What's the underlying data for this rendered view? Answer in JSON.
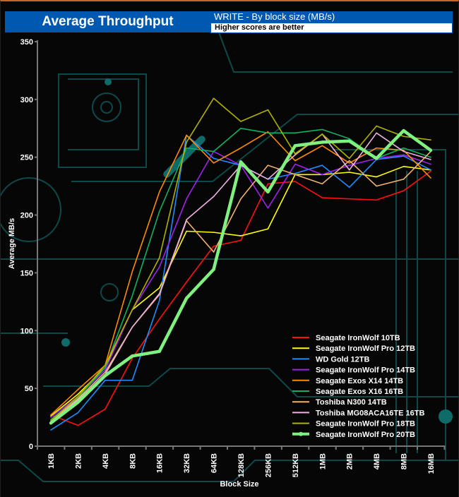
{
  "header": {
    "title": "Average Throughput",
    "subtitle": "WRITE - By block size (MB/s)",
    "note": "Higher scores are better"
  },
  "colors": {
    "header_blue": "#0058b0",
    "background": "#060606",
    "circuit": "#0f5a5a"
  },
  "chart_data": {
    "type": "line",
    "title": "Average Throughput",
    "xlabel": "Block Size",
    "ylabel": "Average MB/s",
    "ylim": [
      0,
      350
    ],
    "yticks": [
      0,
      50,
      100,
      150,
      200,
      250,
      300,
      350
    ],
    "grid": false,
    "legend_position": "bottom-right",
    "categories": [
      "1KB",
      "2KB",
      "4KB",
      "8KB",
      "16KB",
      "32KB",
      "64KB",
      "128KB",
      "256KB",
      "512KB",
      "1MB",
      "2MB",
      "4MB",
      "8MB",
      "16MB"
    ],
    "series": [
      {
        "name": "Seagate IronWolf 10TB",
        "color": "#ff1010",
        "values": [
          27,
          18,
          32,
          76,
          110,
          142,
          173,
          178,
          227,
          229,
          215,
          214,
          213,
          221,
          238
        ]
      },
      {
        "name": "Seagate IronWolf Pro 12TB",
        "color": "#ffff00",
        "values": [
          26,
          45,
          68,
          118,
          137,
          186,
          185,
          182,
          188,
          235,
          235,
          237,
          233,
          242,
          239
        ]
      },
      {
        "name": "WD Gold 12TB",
        "color": "#1e8cff",
        "values": [
          14,
          29,
          57,
          57,
          126,
          269,
          249,
          243,
          231,
          236,
          243,
          224,
          248,
          251,
          239
        ]
      },
      {
        "name": "Seagate IronWolf Pro 14TB",
        "color": "#a020f0",
        "values": [
          25,
          43,
          66,
          118,
          155,
          214,
          255,
          243,
          206,
          244,
          235,
          243,
          249,
          252,
          244
        ]
      },
      {
        "name": "Seagate Exos X14 14TB",
        "color": "#ff8c00",
        "values": [
          27,
          49,
          70,
          151,
          220,
          269,
          245,
          258,
          272,
          247,
          260,
          245,
          258,
          256,
          232
        ]
      },
      {
        "name": "Seagate Exos X16 16TB",
        "color": "#10b060",
        "values": [
          23,
          42,
          68,
          130,
          203,
          258,
          255,
          275,
          271,
          271,
          274,
          266,
          249,
          258,
          250
        ]
      },
      {
        "name": "Toshiba N300 14TB",
        "color": "#f0b070",
        "values": [
          22,
          41,
          64,
          103,
          131,
          195,
          168,
          214,
          243,
          235,
          227,
          247,
          225,
          231,
          255
        ]
      },
      {
        "name": "Toshiba MG08ACA16TE 16TB",
        "color": "#f0b0e0",
        "values": [
          21,
          40,
          62,
          103,
          132,
          196,
          216,
          243,
          231,
          252,
          270,
          239,
          271,
          255,
          248
        ]
      },
      {
        "name": "Seagate IronWolf Pro 18TB",
        "color": "#b0b000",
        "values": [
          22,
          43,
          70,
          118,
          163,
          263,
          301,
          281,
          291,
          253,
          270,
          249,
          277,
          268,
          265
        ]
      },
      {
        "name": "Seagate IronWolf Pro 20TB",
        "color": "#80f080",
        "values": [
          20,
          38,
          61,
          78,
          82,
          128,
          153,
          246,
          220,
          260,
          263,
          264,
          249,
          273,
          256
        ]
      }
    ]
  }
}
